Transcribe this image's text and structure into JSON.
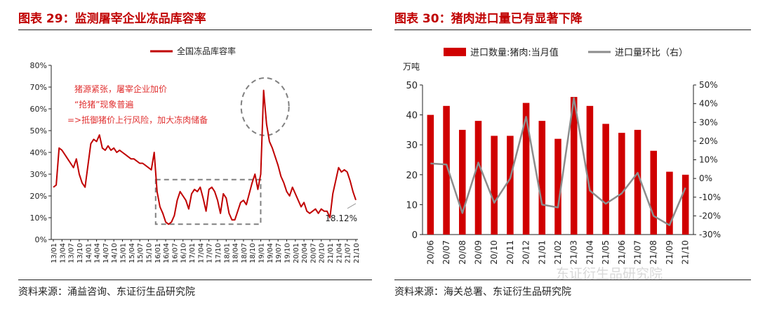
{
  "left": {
    "title": "图表 29：监测屠宰企业冻品库容率",
    "source": "资料来源：涌益咨询、东证衍生品研究院",
    "chart_data": {
      "type": "line",
      "series": [
        {
          "name": "全国冻品库容率",
          "color": "#c00000",
          "points": [
            [
              "13/01",
              0.24
            ],
            [
              "13/02",
              0.25
            ],
            [
              "13/03",
              0.42
            ],
            [
              "13/04",
              0.41
            ],
            [
              "13/05",
              0.39
            ],
            [
              "13/06",
              0.37
            ],
            [
              "13/07",
              0.35
            ],
            [
              "13/08",
              0.33
            ],
            [
              "13/09",
              0.37
            ],
            [
              "13/10",
              0.3
            ],
            [
              "13/11",
              0.26
            ],
            [
              "13/12",
              0.24
            ],
            [
              "14/01",
              0.34
            ],
            [
              "14/02",
              0.44
            ],
            [
              "14/03",
              0.46
            ],
            [
              "14/04",
              0.45
            ],
            [
              "14/05",
              0.48
            ],
            [
              "14/06",
              0.42
            ],
            [
              "14/07",
              0.41
            ],
            [
              "14/08",
              0.43
            ],
            [
              "14/09",
              0.41
            ],
            [
              "14/10",
              0.42
            ],
            [
              "14/11",
              0.4
            ],
            [
              "14/12",
              0.41
            ],
            [
              "15/01",
              0.4
            ],
            [
              "15/02",
              0.39
            ],
            [
              "15/03",
              0.38
            ],
            [
              "15/04",
              0.37
            ],
            [
              "15/05",
              0.37
            ],
            [
              "15/06",
              0.36
            ],
            [
              "15/07",
              0.35
            ],
            [
              "15/08",
              0.35
            ],
            [
              "15/09",
              0.34
            ],
            [
              "15/10",
              0.33
            ],
            [
              "15/11",
              0.32
            ],
            [
              "15/12",
              0.4
            ],
            [
              "16/01",
              0.22
            ],
            [
              "16/02",
              0.15
            ],
            [
              "16/03",
              0.12
            ],
            [
              "16/04",
              0.08
            ],
            [
              "16/05",
              0.07
            ],
            [
              "16/06",
              0.08
            ],
            [
              "16/07",
              0.11
            ],
            [
              "16/08",
              0.18
            ],
            [
              "16/09",
              0.22
            ],
            [
              "16/10",
              0.2
            ],
            [
              "16/11",
              0.18
            ],
            [
              "16/12",
              0.14
            ],
            [
              "17/01",
              0.21
            ],
            [
              "17/02",
              0.23
            ],
            [
              "17/03",
              0.22
            ],
            [
              "17/04",
              0.24
            ],
            [
              "17/05",
              0.19
            ],
            [
              "17/06",
              0.13
            ],
            [
              "17/07",
              0.23
            ],
            [
              "17/08",
              0.24
            ],
            [
              "17/09",
              0.22
            ],
            [
              "17/10",
              0.18
            ],
            [
              "17/11",
              0.12
            ],
            [
              "17/12",
              0.21
            ],
            [
              "18/01",
              0.19
            ],
            [
              "18/02",
              0.12
            ],
            [
              "18/03",
              0.09
            ],
            [
              "18/04",
              0.09
            ],
            [
              "18/05",
              0.13
            ],
            [
              "18/06",
              0.17
            ],
            [
              "18/07",
              0.18
            ],
            [
              "18/08",
              0.16
            ],
            [
              "18/09",
              0.21
            ],
            [
              "18/10",
              0.26
            ],
            [
              "18/11",
              0.3
            ],
            [
              "18/12",
              0.23
            ],
            [
              "19/01",
              0.3
            ],
            [
              "19/02",
              0.685
            ],
            [
              "19/03",
              0.53
            ],
            [
              "19/04",
              0.45
            ],
            [
              "19/05",
              0.42
            ],
            [
              "19/06",
              0.38
            ],
            [
              "19/07",
              0.34
            ],
            [
              "19/08",
              0.29
            ],
            [
              "19/09",
              0.26
            ],
            [
              "19/10",
              0.22
            ],
            [
              "19/11",
              0.2
            ],
            [
              "19/12",
              0.24
            ],
            [
              "20/01",
              0.21
            ],
            [
              "20/02",
              0.18
            ],
            [
              "20/03",
              0.15
            ],
            [
              "20/04",
              0.17
            ],
            [
              "20/05",
              0.13
            ],
            [
              "20/06",
              0.12
            ],
            [
              "20/07",
              0.13
            ],
            [
              "20/08",
              0.14
            ],
            [
              "20/09",
              0.12
            ],
            [
              "20/10",
              0.14
            ],
            [
              "20/11",
              0.13
            ],
            [
              "20/12",
              0.13
            ],
            [
              "21/01",
              0.1
            ],
            [
              "21/02",
              0.21
            ],
            [
              "21/03",
              0.27
            ],
            [
              "21/04",
              0.33
            ],
            [
              "21/05",
              0.31
            ],
            [
              "21/06",
              0.32
            ],
            [
              "21/07",
              0.31
            ],
            [
              "21/08",
              0.27
            ],
            [
              "21/09",
              0.22
            ],
            [
              "21/10",
              0.1812
            ]
          ]
        }
      ],
      "x_tick_labels": [
        "13/01",
        "13/04",
        "13/07",
        "13/10",
        "14/01",
        "14/04",
        "14/07",
        "14/10",
        "15/01",
        "15/04",
        "15/07",
        "15/10",
        "16/01",
        "16/04",
        "16/07",
        "16/10",
        "17/01",
        "17/04",
        "17/07",
        "17/10",
        "18/01",
        "18/04",
        "18/07",
        "18/10",
        "19/01",
        "19/04",
        "19/07",
        "19/10",
        "20/01",
        "20/04",
        "20/07",
        "20/10",
        "21/01",
        "21/04",
        "21/07",
        "21/10"
      ],
      "y_ticks": [
        "0%",
        "10%",
        "20%",
        "30%",
        "40%",
        "50%",
        "60%",
        "70%",
        "80%"
      ],
      "ylim": [
        0,
        0.8
      ],
      "annotations": {
        "note_lines": [
          "猪源紧张，屠宰企业加价",
          "“抢猪”现象普遍",
          "=>抵御猪价上行风险，加大冻肉储备"
        ],
        "end_label": "18.12%"
      },
      "legend_position": "top-center",
      "grid": false
    }
  },
  "right": {
    "title": "图表 30：猪肉进口量已有显著下降",
    "source": "资料来源：海关总署、东证衍生品研究院",
    "chart_data": {
      "type": "bar",
      "categories": [
        "20/06",
        "20/07",
        "20/08",
        "20/09",
        "20/10",
        "20/11",
        "20/12",
        "21/01",
        "21/02",
        "21/03",
        "21/04",
        "21/05",
        "21/06",
        "21/07",
        "21/08",
        "21/09",
        "21/10"
      ],
      "series": [
        {
          "name": "进口数量:猪肉:当月值",
          "type": "bar",
          "axis": "left",
          "color": "#d00000",
          "values": [
            40,
            43,
            35,
            38,
            33,
            33,
            44,
            38,
            32,
            46,
            43,
            37,
            34,
            35,
            28,
            21,
            20
          ]
        },
        {
          "name": "进口量环比（右）",
          "type": "line",
          "axis": "right",
          "color": "#8c8c8c",
          "values": [
            0.08,
            0.075,
            -0.185,
            0.085,
            -0.13,
            0.0,
            0.33,
            -0.14,
            -0.155,
            0.43,
            -0.065,
            -0.135,
            -0.08,
            0.03,
            -0.2,
            -0.25,
            -0.05
          ]
        }
      ],
      "left_axis_unit": "万吨",
      "ylim_left": [
        0,
        50
      ],
      "ylim_right": [
        -0.3,
        0.5
      ],
      "y_ticks_left": [
        "0",
        "10",
        "20",
        "30",
        "40",
        "50"
      ],
      "y_ticks_right": [
        "-30%",
        "-20%",
        "-10%",
        "0%",
        "10%",
        "20%",
        "30%",
        "40%",
        "50%"
      ],
      "legend_position": "top",
      "grid": false
    }
  },
  "watermark": "东证衍生品研究院"
}
